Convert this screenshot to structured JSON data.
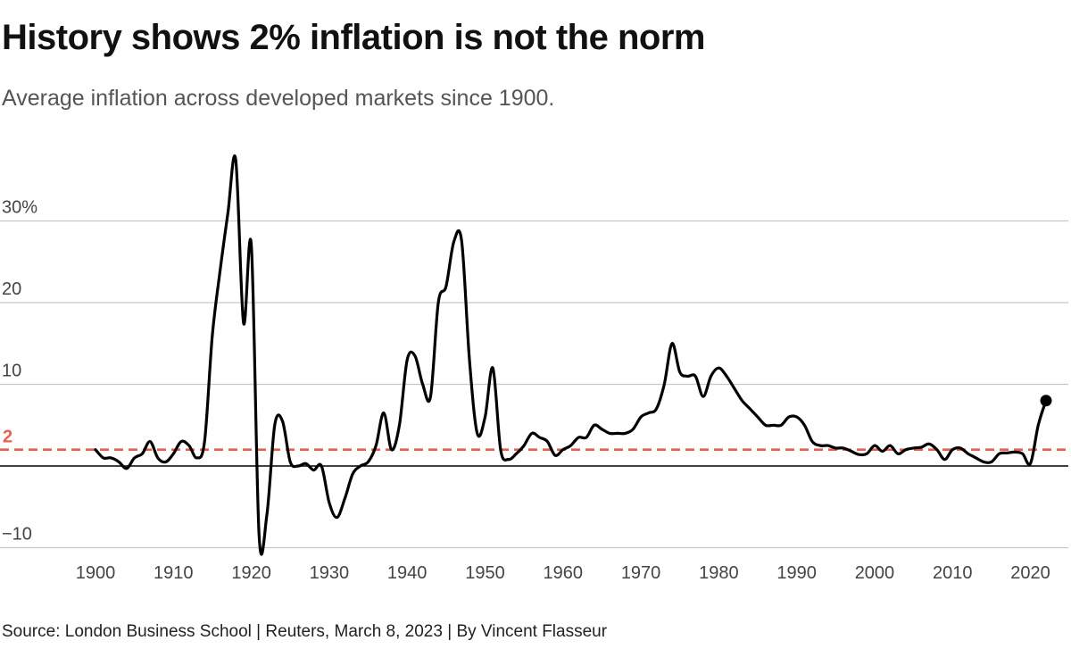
{
  "title": "History shows 2% inflation is not the norm",
  "subtitle": "Average inflation across developed markets since 1900.",
  "source": "Source: London Business School | Reuters, March 8, 2023 | By Vincent Flasseur",
  "colors": {
    "line": "#000000",
    "reference": "#e8604c",
    "grid": "#c8c8c8"
  },
  "chart_data": {
    "type": "line",
    "title": "History shows 2% inflation is not the norm",
    "xlabel": "",
    "ylabel": "",
    "xlim": [
      1900,
      2022
    ],
    "ylim": [
      -10,
      30
    ],
    "x_ticks": [
      1900,
      1910,
      1920,
      1930,
      1940,
      1950,
      1960,
      1970,
      1980,
      1990,
      2000,
      2010,
      2020
    ],
    "x_tick_labels": [
      "1900",
      "1910",
      "1920",
      "1930",
      "1940",
      "1950",
      "1960",
      "1970",
      "1980",
      "1990",
      "2000",
      "2010",
      "2020"
    ],
    "y_ticks": [
      -10,
      0,
      10,
      20,
      30
    ],
    "y_tick_labels": [
      "−10",
      "",
      "10",
      "20",
      "30%"
    ],
    "grid": true,
    "reference_line": {
      "y": 2,
      "label": "2",
      "style": "dashed",
      "color": "#e8604c"
    },
    "end_marker": {
      "x": 2022,
      "y": 8
    },
    "series": [
      {
        "x": [
          1900,
          1901,
          1902,
          1903,
          1904,
          1905,
          1906,
          1907,
          1908,
          1909,
          1910,
          1911,
          1912,
          1913,
          1914,
          1915,
          1916,
          1917,
          1918,
          1919,
          1920,
          1921,
          1922,
          1923,
          1924,
          1925,
          1926,
          1927,
          1928,
          1929,
          1930,
          1931,
          1932,
          1933,
          1934,
          1935,
          1936,
          1937,
          1938,
          1939,
          1940,
          1941,
          1942,
          1943,
          1944,
          1945,
          1946,
          1947,
          1948,
          1949,
          1950,
          1951,
          1952,
          1953,
          1954,
          1955,
          1956,
          1957,
          1958,
          1959,
          1960,
          1961,
          1962,
          1963,
          1964,
          1965,
          1966,
          1967,
          1968,
          1969,
          1970,
          1971,
          1972,
          1973,
          1974,
          1975,
          1976,
          1977,
          1978,
          1979,
          1980,
          1981,
          1982,
          1983,
          1984,
          1985,
          1986,
          1987,
          1988,
          1989,
          1990,
          1991,
          1992,
          1993,
          1994,
          1995,
          1996,
          1997,
          1998,
          1999,
          2000,
          2001,
          2002,
          2003,
          2004,
          2005,
          2006,
          2007,
          2008,
          2009,
          2010,
          2011,
          2012,
          2013,
          2014,
          2015,
          2016,
          2017,
          2018,
          2019,
          2020,
          2021,
          2022
        ],
        "values": [
          2,
          1,
          1,
          0.5,
          -0.3,
          1,
          1.5,
          3,
          1,
          0.5,
          1.5,
          3,
          2.5,
          1,
          3,
          16,
          24,
          31,
          37.5,
          17.5,
          27,
          -8.5,
          -6,
          5,
          5.5,
          0.5,
          0,
          0.3,
          -0.5,
          0,
          -4.5,
          -6.3,
          -4,
          -1,
          0,
          0.5,
          2.5,
          6.5,
          2,
          5,
          13,
          13.5,
          10,
          8.5,
          20,
          22,
          27.5,
          27.5,
          13,
          4,
          6,
          12,
          2,
          0.8,
          1.5,
          2.5,
          4,
          3.5,
          3,
          1.3,
          2,
          2.5,
          3.5,
          3.5,
          5,
          4.5,
          4,
          4,
          4,
          4.5,
          6,
          6.5,
          7,
          10,
          15,
          11.5,
          11,
          11,
          8.5,
          11,
          12,
          11,
          9.5,
          8,
          7,
          6,
          5,
          5,
          5,
          6,
          6,
          5,
          3,
          2.5,
          2.5,
          2.2,
          2.2,
          1.8,
          1.4,
          1.5,
          2.5,
          1.8,
          2.5,
          1.5,
          2,
          2.2,
          2.3,
          2.7,
          2,
          0.8,
          2,
          2.2,
          1.5,
          1,
          0.5,
          0.5,
          1.5,
          1.6,
          1.7,
          1.5,
          0.3,
          5,
          8
        ]
      }
    ]
  }
}
